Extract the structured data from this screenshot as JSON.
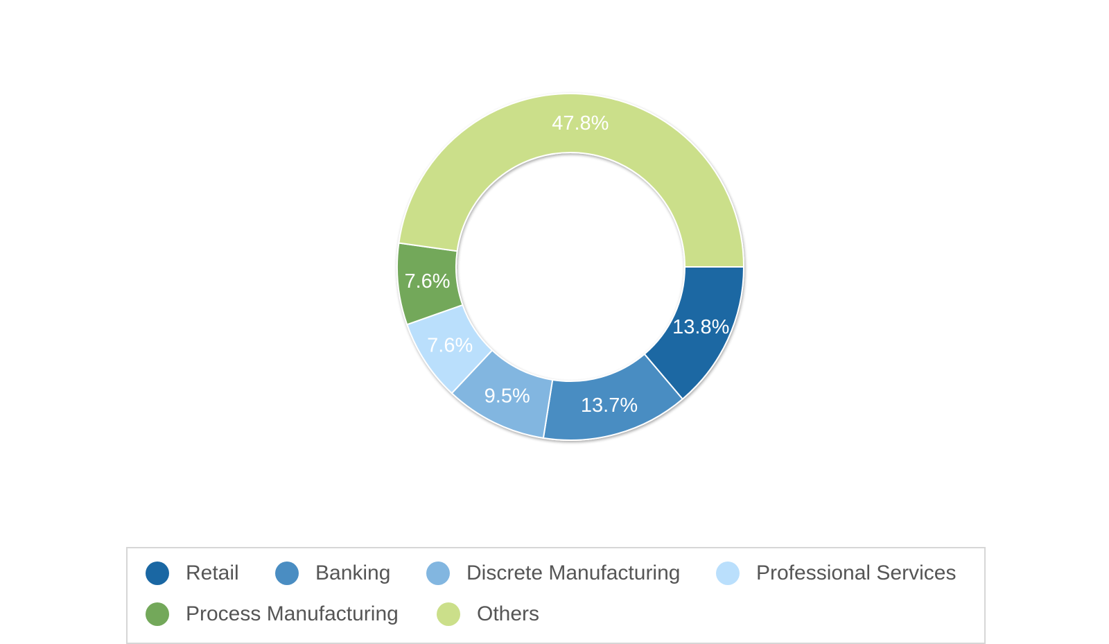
{
  "chart_data": {
    "type": "pie",
    "variant": "donut",
    "categories": [
      "Retail",
      "Banking",
      "Discrete Manufacturing",
      "Professional Services",
      "Process Manufacturing",
      "Others"
    ],
    "values": [
      13.8,
      13.7,
      9.5,
      7.6,
      7.6,
      47.8
    ],
    "data_labels": [
      "13.8%",
      "13.7%",
      "9.5%",
      "7.6%",
      "7.6%",
      "47.8%"
    ],
    "colors": [
      "#1A67A3",
      "#4A8DC2",
      "#82B6E0",
      "#BADFFC",
      "#73A85A",
      "#CBDF8A"
    ],
    "legend_position": "bottom",
    "title": ""
  },
  "legend": {
    "items": [
      {
        "label": "Retail",
        "color": "#1A67A3"
      },
      {
        "label": "Banking",
        "color": "#4A8DC2"
      },
      {
        "label": "Discrete Manufacturing",
        "color": "#82B6E0"
      },
      {
        "label": "Professional Services",
        "color": "#BADFFC"
      },
      {
        "label": "Process Manufacturing",
        "color": "#73A85A"
      },
      {
        "label": "Others",
        "color": "#CBDF8A"
      }
    ]
  }
}
